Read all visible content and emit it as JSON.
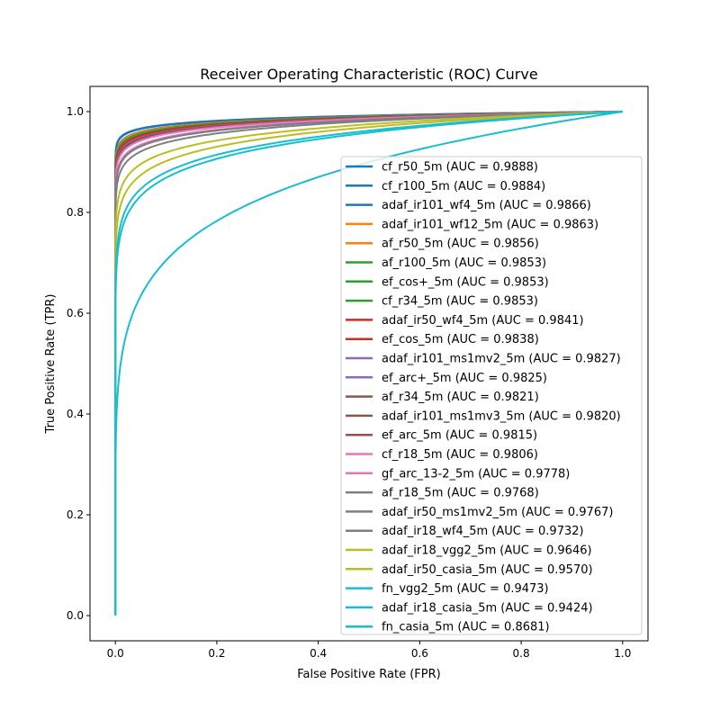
{
  "chart_data": {
    "type": "line",
    "title": "Receiver Operating Characteristic (ROC) Curve",
    "xlabel": "False Positive Rate (FPR)",
    "ylabel": "True Positive Rate (TPR)",
    "xlim": [
      -0.05,
      1.05
    ],
    "ylim": [
      -0.05,
      1.05
    ],
    "xticks": [
      "0.0",
      "0.2",
      "0.4",
      "0.6",
      "0.8",
      "1.0"
    ],
    "yticks": [
      "0.0",
      "0.2",
      "0.4",
      "0.6",
      "0.8",
      "1.0"
    ],
    "grid": false,
    "legend_position": "center-right",
    "series": [
      {
        "name": "cf_r50_5m (AUC = 0.9888)",
        "auc": 0.9888,
        "color": "#1f77b4"
      },
      {
        "name": "cf_r100_5m (AUC = 0.9884)",
        "auc": 0.9884,
        "color": "#1f77b4"
      },
      {
        "name": "adaf_ir101_wf4_5m (AUC = 0.9866)",
        "auc": 0.9866,
        "color": "#1f77b4"
      },
      {
        "name": "adaf_ir101_wf12_5m (AUC = 0.9863)",
        "auc": 0.9863,
        "color": "#ff7f0e"
      },
      {
        "name": "af_r50_5m (AUC = 0.9856)",
        "auc": 0.9856,
        "color": "#ff7f0e"
      },
      {
        "name": "af_r100_5m (AUC = 0.9853)",
        "auc": 0.9853,
        "color": "#2ca02c"
      },
      {
        "name": "ef_cos+_5m (AUC = 0.9853)",
        "auc": 0.9853,
        "color": "#2ca02c"
      },
      {
        "name": "cf_r34_5m (AUC = 0.9853)",
        "auc": 0.9853,
        "color": "#2ca02c"
      },
      {
        "name": "adaf_ir50_wf4_5m (AUC = 0.9841)",
        "auc": 0.9841,
        "color": "#d62728"
      },
      {
        "name": "ef_cos_5m (AUC = 0.9838)",
        "auc": 0.9838,
        "color": "#d62728"
      },
      {
        "name": "adaf_ir101_ms1mv2_5m (AUC = 0.9827)",
        "auc": 0.9827,
        "color": "#9467bd"
      },
      {
        "name": "ef_arc+_5m (AUC = 0.9825)",
        "auc": 0.9825,
        "color": "#9467bd"
      },
      {
        "name": "af_r34_5m (AUC = 0.9821)",
        "auc": 0.9821,
        "color": "#8c564b"
      },
      {
        "name": "adaf_ir101_ms1mv3_5m (AUC = 0.9820)",
        "auc": 0.982,
        "color": "#8c564b"
      },
      {
        "name": "ef_arc_5m (AUC = 0.9815)",
        "auc": 0.9815,
        "color": "#8c564b"
      },
      {
        "name": "cf_r18_5m (AUC = 0.9806)",
        "auc": 0.9806,
        "color": "#e377c2"
      },
      {
        "name": "gf_arc_13-2_5m (AUC = 0.9778)",
        "auc": 0.9778,
        "color": "#e377c2"
      },
      {
        "name": "af_r18_5m (AUC = 0.9768)",
        "auc": 0.9768,
        "color": "#7f7f7f"
      },
      {
        "name": "adaf_ir50_ms1mv2_5m (AUC = 0.9767)",
        "auc": 0.9767,
        "color": "#7f7f7f"
      },
      {
        "name": "adaf_ir18_wf4_5m (AUC = 0.9732)",
        "auc": 0.9732,
        "color": "#7f7f7f"
      },
      {
        "name": "adaf_ir18_vgg2_5m (AUC = 0.9646)",
        "auc": 0.9646,
        "color": "#bcbd22"
      },
      {
        "name": "adaf_ir50_casia_5m (AUC = 0.9570)",
        "auc": 0.957,
        "color": "#bcbd22"
      },
      {
        "name": "fn_vgg2_5m (AUC = 0.9473)",
        "auc": 0.9473,
        "color": "#17becf"
      },
      {
        "name": "adaf_ir18_casia_5m (AUC = 0.9424)",
        "auc": 0.9424,
        "color": "#17becf"
      },
      {
        "name": "fn_casia_5m (AUC = 0.8681)",
        "auc": 0.8681,
        "color": "#17becf"
      }
    ]
  }
}
